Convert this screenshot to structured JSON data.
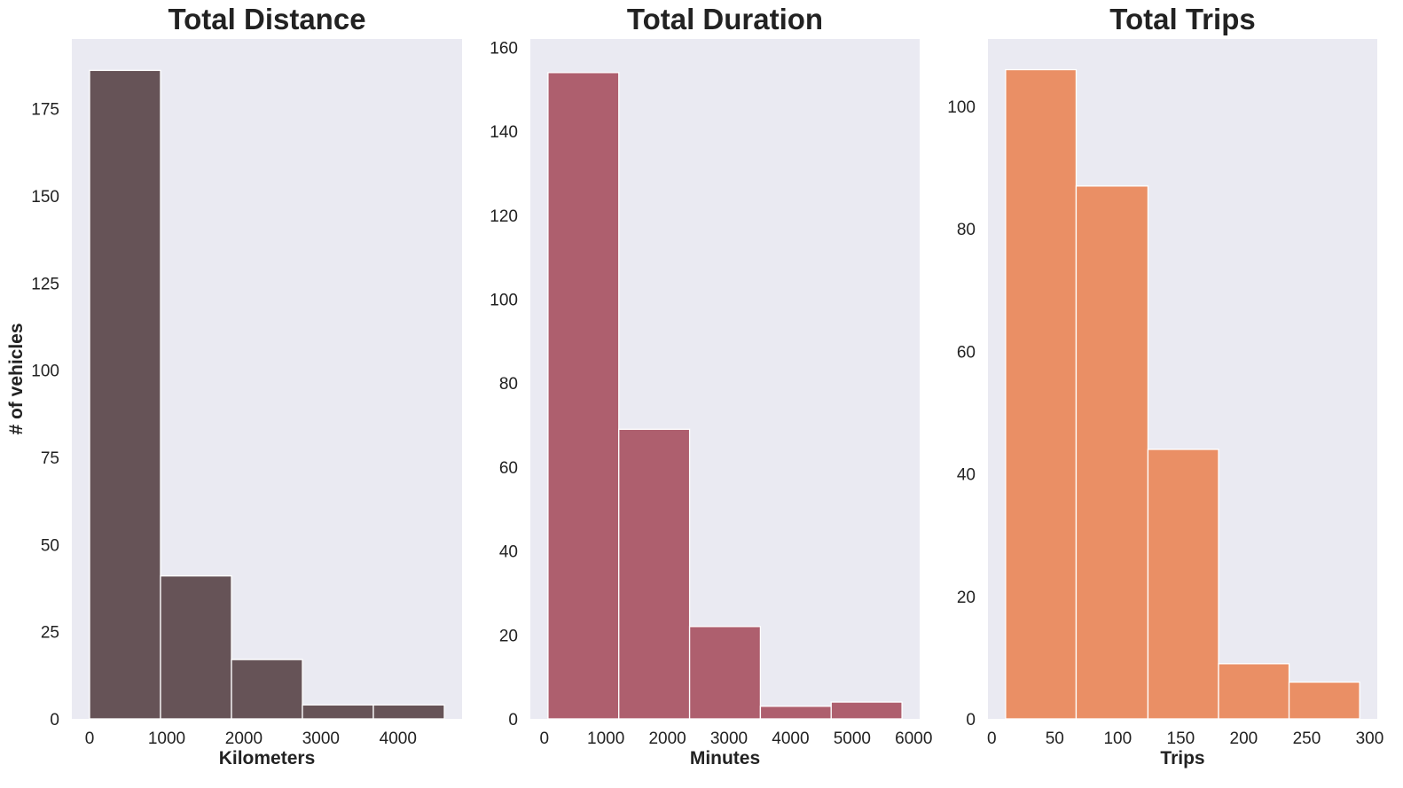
{
  "chart_data": [
    {
      "type": "bar",
      "title": "Total Distance",
      "xlabel": "Kilometers",
      "ylabel": "# of vehicles",
      "bar_color": "#665357",
      "bins": [
        {
          "x0": 0,
          "x1": 920,
          "count": 186
        },
        {
          "x0": 920,
          "x1": 1840,
          "count": 41
        },
        {
          "x0": 1840,
          "x1": 2760,
          "count": 17
        },
        {
          "x0": 2760,
          "x1": 3680,
          "count": 4
        },
        {
          "x0": 3680,
          "x1": 4600,
          "count": 4
        }
      ],
      "xlim": [
        -230,
        4830
      ],
      "ylim": [
        0,
        195
      ],
      "xticks": [
        0,
        1000,
        2000,
        3000,
        4000
      ],
      "yticks": [
        0,
        25,
        50,
        75,
        100,
        125,
        150,
        175
      ],
      "grid": false
    },
    {
      "type": "bar",
      "title": "Total Duration",
      "xlabel": "Minutes",
      "ylabel": "",
      "bar_color": "#ae5f6e",
      "bins": [
        {
          "x0": 60,
          "x1": 1210,
          "count": 154
        },
        {
          "x0": 1210,
          "x1": 2360,
          "count": 69
        },
        {
          "x0": 2360,
          "x1": 3510,
          "count": 22
        },
        {
          "x0": 3510,
          "x1": 4660,
          "count": 3
        },
        {
          "x0": 4660,
          "x1": 5810,
          "count": 4
        }
      ],
      "xlim": [
        -227,
        6097
      ],
      "ylim": [
        0,
        162
      ],
      "xticks": [
        0,
        1000,
        2000,
        3000,
        4000,
        5000,
        6000
      ],
      "yticks": [
        0,
        20,
        40,
        60,
        80,
        100,
        120,
        140,
        160
      ],
      "grid": false
    },
    {
      "type": "bar",
      "title": "Total Trips",
      "xlabel": "Trips",
      "ylabel": "",
      "bar_color": "#ea8f65",
      "bins": [
        {
          "x0": 11,
          "x1": 67,
          "count": 106
        },
        {
          "x0": 67,
          "x1": 124,
          "count": 87
        },
        {
          "x0": 124,
          "x1": 180,
          "count": 44
        },
        {
          "x0": 180,
          "x1": 236,
          "count": 9
        },
        {
          "x0": 236,
          "x1": 292,
          "count": 6
        }
      ],
      "xlim": [
        -3,
        306
      ],
      "ylim": [
        0,
        111
      ],
      "xticks": [
        0,
        50,
        100,
        150,
        200,
        250,
        300
      ],
      "yticks": [
        0,
        20,
        40,
        60,
        80,
        100
      ],
      "grid": false
    }
  ]
}
